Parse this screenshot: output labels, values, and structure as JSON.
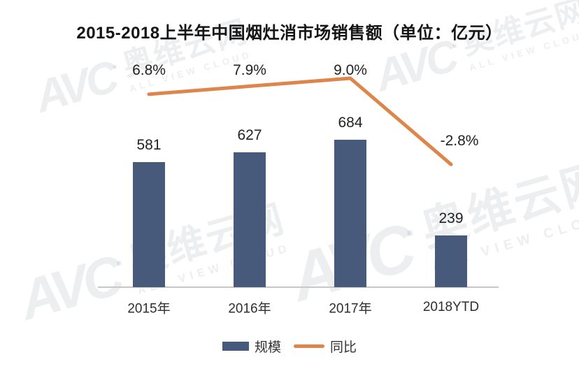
{
  "title": "2015-2018上半年中国烟灶消市场销售额（单位：亿元）",
  "watermark": {
    "logo_text": "AVC",
    "brand_cn": "奥维云网",
    "brand_en": "ALL VIEW CLOUD"
  },
  "colors": {
    "bar": "#485a7c",
    "line": "#dd854a",
    "axis": "#c7c7c7"
  },
  "chart_data": {
    "type": "bar",
    "subtype": "bar-line combo",
    "title": "2015-2018上半年中国烟灶消市场销售额（单位：亿元）",
    "unit": "亿元",
    "categories": [
      "2015年",
      "2016年",
      "2017年",
      "2018YTD"
    ],
    "series": [
      {
        "name": "规模",
        "type": "bar",
        "color": "#485a7c",
        "values": [
          581,
          627,
          684,
          239
        ],
        "labels": [
          "581",
          "627",
          "684",
          "239"
        ]
      },
      {
        "name": "同比",
        "type": "line",
        "color": "#dd854a",
        "values": [
          6.8,
          7.9,
          9.0,
          -2.8
        ],
        "labels": [
          "6.8%",
          "7.9%",
          "9.0%",
          "-2.8%"
        ]
      }
    ],
    "ylabel": "",
    "xlabel": "",
    "value_axis_visible": false,
    "grid": false,
    "legend_position": "bottom-center",
    "data_labels": true
  }
}
